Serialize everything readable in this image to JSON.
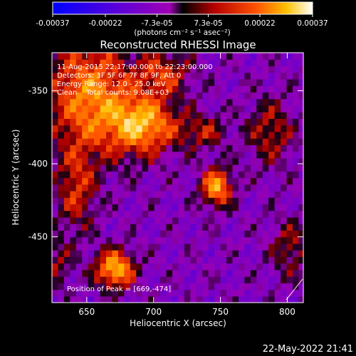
{
  "chart_data": {
    "type": "heatmap",
    "title": "Reconstructed RHESSI Image",
    "xlabel": "Heliocentric X (arcsec)",
    "ylabel": "Heliocentric Y (arcsec)",
    "xlim": [
      624,
      812
    ],
    "ylim": [
      -495,
      -324
    ],
    "x_ticks": [
      650,
      700,
      750,
      800
    ],
    "x_tick_labels": [
      "650",
      "700",
      "750",
      "800"
    ],
    "y_ticks": [
      -350,
      -400,
      -450
    ],
    "y_tick_labels": [
      "-350",
      "-400",
      "-450"
    ],
    "colorbar": {
      "range": [
        -0.00037,
        0.00037
      ],
      "ticks": [
        -0.00037,
        -0.00022,
        -7.3e-05,
        7.3e-05,
        0.00022,
        0.00037
      ],
      "tick_labels": [
        "-0.00037",
        "-0.00022",
        "-7.3e-05",
        "7.3e-05",
        "0.00022",
        "0.00037"
      ],
      "unit_label": "(photons cm⁻² s⁻¹ asec⁻²)"
    },
    "annotations": [
      "11-Aug-2015 22:17:00.000 to 22:23:00.000",
      "Detectors: 3F 5F 6F 7F 8F 9F, Att 0",
      "Energy Range: 12.0 - 25.0 keV",
      "Clean    Total counts: 9.08E+03",
      "Position of Peak = [669,-474]"
    ],
    "peak": {
      "x": 669,
      "y": -474
    },
    "bright_sources": [
      {
        "x": 650,
        "y": -355,
        "amp": 0.0003,
        "sx": 22,
        "sy": 28
      },
      {
        "x": 690,
        "y": -375,
        "amp": 0.00034,
        "sx": 18,
        "sy": 14
      },
      {
        "x": 705,
        "y": -340,
        "amp": 0.0002,
        "sx": 14,
        "sy": 10
      },
      {
        "x": 745,
        "y": -418,
        "amp": 0.00034,
        "sx": 8,
        "sy": 9
      },
      {
        "x": 669,
        "y": -474,
        "amp": 0.00037,
        "sx": 10,
        "sy": 9
      },
      {
        "x": 640,
        "y": -420,
        "amp": 0.00018,
        "sx": 10,
        "sy": 20
      },
      {
        "x": 735,
        "y": -380,
        "amp": 0.00015,
        "sx": 12,
        "sy": 8
      },
      {
        "x": 785,
        "y": -380,
        "amp": 0.00016,
        "sx": 12,
        "sy": 16
      },
      {
        "x": 800,
        "y": -460,
        "amp": 0.00014,
        "sx": 10,
        "sy": 14
      },
      {
        "x": 625,
        "y": -470,
        "amp": 0.00012,
        "sx": 8,
        "sy": 12
      }
    ],
    "grid": false,
    "timestamp": "22-May-2022 21:41"
  }
}
